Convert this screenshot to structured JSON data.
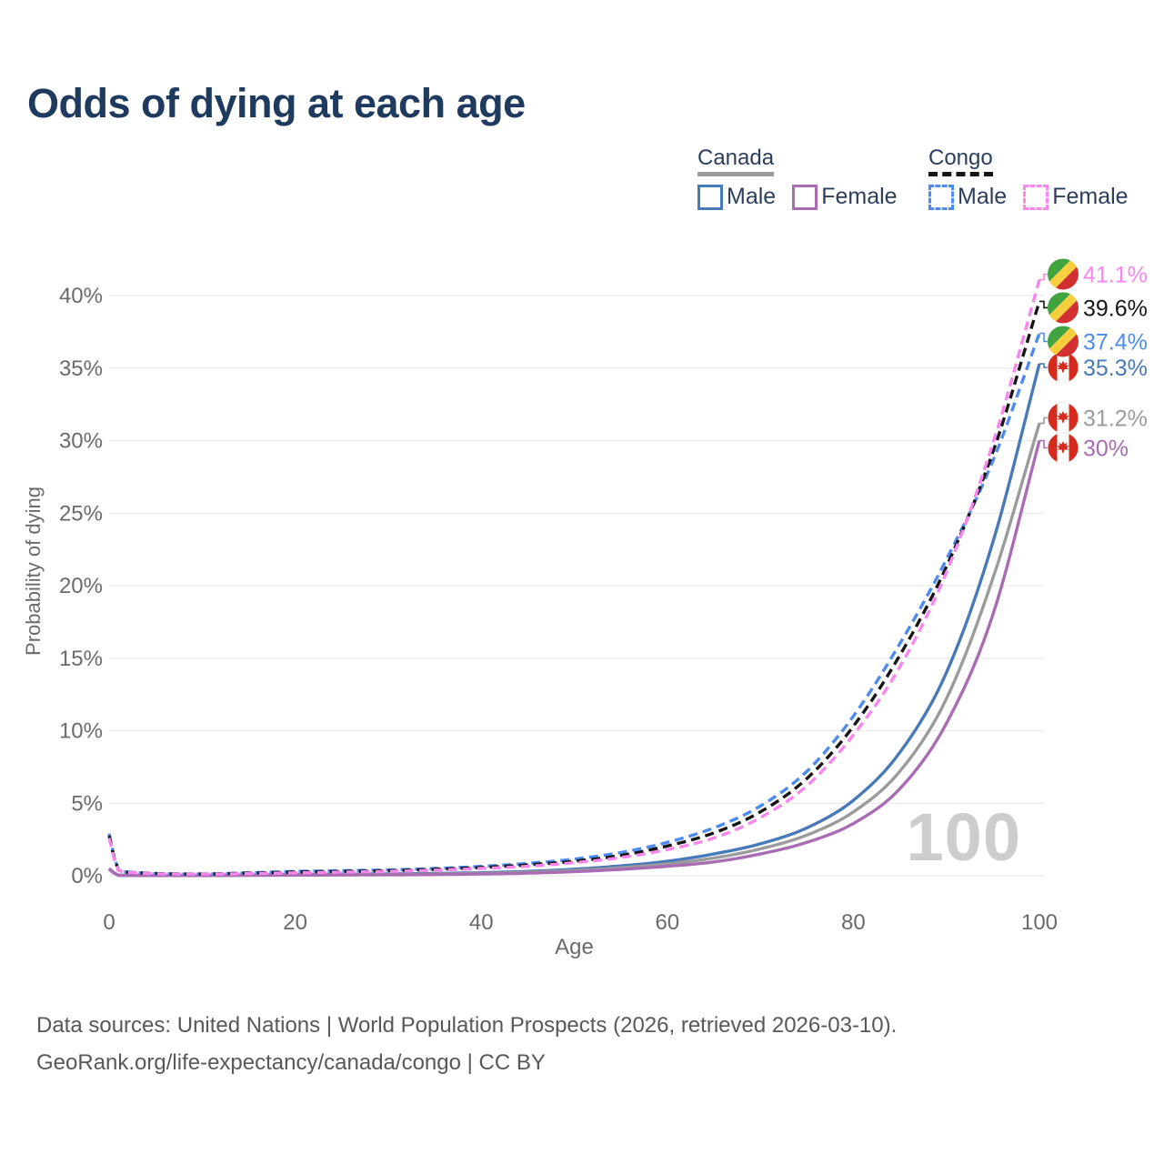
{
  "title": "Odds of dying at each age",
  "watermark": "100",
  "legend": {
    "groups": [
      {
        "country": "Canada",
        "line_style": "solid",
        "underline_color": "#9b9b9b",
        "items": [
          {
            "label": "Male",
            "color": "#4879b9",
            "dashed": false
          },
          {
            "label": "Female",
            "color": "#a96cb3",
            "dashed": false
          }
        ]
      },
      {
        "country": "Congo",
        "line_style": "dashed",
        "underline_color": "#161616",
        "items": [
          {
            "label": "Male",
            "color": "#4d8bf0",
            "dashed": true
          },
          {
            "label": "Female",
            "color": "#f985ef",
            "dashed": true
          }
        ]
      }
    ]
  },
  "chart_data": {
    "type": "line",
    "title": "Odds of dying at each age",
    "xlabel": "Age",
    "ylabel": "Probability of dying",
    "xlim": [
      0,
      100
    ],
    "ylim": [
      0,
      42
    ],
    "xticks": [
      0,
      20,
      40,
      60,
      80,
      100
    ],
    "yticks": [
      0,
      5,
      10,
      15,
      20,
      25,
      30,
      35,
      40
    ],
    "ytick_suffix": "%",
    "grid": "horizontal",
    "ages": [
      0,
      1,
      2,
      5,
      10,
      15,
      20,
      25,
      30,
      35,
      40,
      45,
      50,
      55,
      60,
      65,
      70,
      75,
      80,
      85,
      90,
      95,
      100
    ],
    "series": [
      {
        "name": "Canada Male",
        "country": "Canada",
        "sex": "male",
        "color": "#4879b9",
        "dashed": false,
        "flag": "canada",
        "end_label": "35.3%",
        "values": [
          0.5,
          0.04,
          0.03,
          0.02,
          0.02,
          0.05,
          0.09,
          0.11,
          0.13,
          0.16,
          0.21,
          0.3,
          0.45,
          0.68,
          1.0,
          1.5,
          2.2,
          3.3,
          5.2,
          8.5,
          14.0,
          23.0,
          35.3
        ]
      },
      {
        "name": "Canada Both sexes",
        "country": "Canada",
        "sex": "both",
        "color": "#9b9b9b",
        "dashed": false,
        "flag": "canada",
        "end_label": "31.2%",
        "values": [
          0.48,
          0.035,
          0.025,
          0.018,
          0.018,
          0.04,
          0.06,
          0.08,
          0.09,
          0.12,
          0.16,
          0.24,
          0.36,
          0.55,
          0.82,
          1.22,
          1.85,
          2.8,
          4.4,
          7.2,
          12.2,
          20.5,
          31.2
        ]
      },
      {
        "name": "Canada Female",
        "country": "Canada",
        "sex": "female",
        "color": "#a96cb3",
        "dashed": false,
        "flag": "canada",
        "end_label": "30%",
        "values": [
          0.45,
          0.03,
          0.02,
          0.015,
          0.015,
          0.03,
          0.04,
          0.05,
          0.06,
          0.08,
          0.12,
          0.18,
          0.28,
          0.44,
          0.65,
          0.95,
          1.5,
          2.3,
          3.6,
          6.0,
          10.5,
          18.0,
          30.0
        ]
      },
      {
        "name": "Congo Male",
        "country": "Congo",
        "sex": "male",
        "color": "#4d8bf0",
        "dashed": true,
        "flag": "congo",
        "end_label": "37.4%",
        "values": [
          2.9,
          0.4,
          0.25,
          0.15,
          0.12,
          0.2,
          0.3,
          0.35,
          0.4,
          0.5,
          0.65,
          0.85,
          1.15,
          1.6,
          2.3,
          3.3,
          4.8,
          7.2,
          11.0,
          16.0,
          21.8,
          28.6,
          37.4
        ]
      },
      {
        "name": "Congo Both sexes",
        "country": "Congo",
        "sex": "both",
        "color": "#161616",
        "dashed": true,
        "flag": "congo",
        "end_label": "39.6%",
        "values": [
          2.75,
          0.39,
          0.24,
          0.15,
          0.12,
          0.18,
          0.25,
          0.3,
          0.35,
          0.44,
          0.57,
          0.75,
          1.0,
          1.4,
          2.05,
          2.95,
          4.4,
          6.7,
          10.3,
          15.2,
          21.3,
          29.2,
          39.6
        ]
      },
      {
        "name": "Congo Female",
        "country": "Congo",
        "sex": "female",
        "color": "#f985ef",
        "dashed": true,
        "flag": "congo",
        "end_label": "41.1%",
        "values": [
          2.6,
          0.38,
          0.23,
          0.14,
          0.11,
          0.15,
          0.2,
          0.25,
          0.3,
          0.38,
          0.5,
          0.65,
          0.9,
          1.25,
          1.8,
          2.6,
          4.0,
          6.2,
          9.7,
          14.4,
          20.9,
          29.8,
          41.1
        ]
      }
    ],
    "flag_colors": {
      "congo_green": "#3fa33f",
      "congo_yellow": "#f6ce3e",
      "congo_red": "#d22f30",
      "canada_red": "#d52b1e",
      "canada_white": "#ffffff"
    }
  },
  "footer": {
    "line1": "Data sources: United Nations | World Population Prospects (2026, retrieved 2026-03-10).",
    "line2": "GeoRank.org/life-expectancy/canada/congo | CC BY"
  }
}
